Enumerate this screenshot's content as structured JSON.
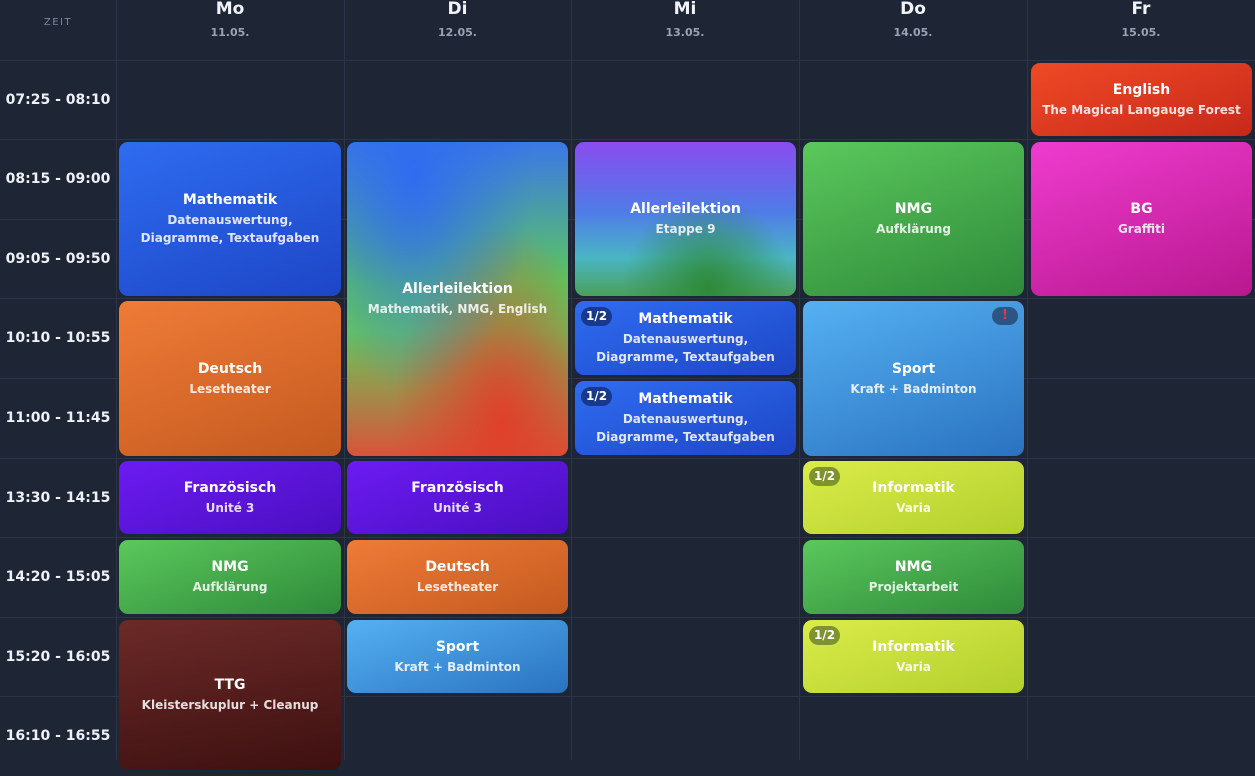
{
  "zeit_label": "ZEIT",
  "days": [
    {
      "name": "Mo",
      "date": "11.05."
    },
    {
      "name": "Di",
      "date": "12.05."
    },
    {
      "name": "Mi",
      "date": "13.05."
    },
    {
      "name": "Do",
      "date": "14.05."
    },
    {
      "name": "Fr",
      "date": "15.05."
    }
  ],
  "times": [
    "07:25 - 08:10",
    "08:15 - 09:00",
    "09:05 - 09:50",
    "10:10 - 10:55",
    "11:00 - 11:45",
    "13:30 - 14:15",
    "14:20 - 15:05",
    "15:20 - 16:05",
    "16:10 - 16:55"
  ],
  "lessons": {
    "mo_mathematik": {
      "subject": "Mathematik",
      "topic": "Datenauswertung, Diagramme, Textaufgaben"
    },
    "mo_deutsch": {
      "subject": "Deutsch",
      "topic": "Lesetheater"
    },
    "mo_franzoesisch": {
      "subject": "Französisch",
      "topic": "Unité 3"
    },
    "mo_nmg": {
      "subject": "NMG",
      "topic": "Aufklärung"
    },
    "mo_ttg": {
      "subject": "TTG",
      "topic": "Kleisterskuplur + Cleanup"
    },
    "di_allerlei": {
      "subject": "Allerleilektion",
      "topic": "Mathematik, NMG, English"
    },
    "di_franzoesisch": {
      "subject": "Französisch",
      "topic": "Unité 3"
    },
    "di_deutsch": {
      "subject": "Deutsch",
      "topic": "Lesetheater"
    },
    "di_sport": {
      "subject": "Sport",
      "topic": "Kraft + Badminton"
    },
    "mi_allerlei": {
      "subject": "Allerleilektion",
      "topic": "Etappe 9"
    },
    "mi_mathe1": {
      "subject": "Mathematik",
      "topic": "Datenauswertung, Diagramme, Textaufgaben",
      "badge": "1/2"
    },
    "mi_mathe2": {
      "subject": "Mathematik",
      "topic": "Datenauswertung, Diagramme, Textaufgaben",
      "badge": "1/2"
    },
    "do_nmg1": {
      "subject": "NMG",
      "topic": "Aufklärung"
    },
    "do_sport": {
      "subject": "Sport",
      "topic": "Kraft + Badminton",
      "alert": "!"
    },
    "do_info1": {
      "subject": "Informatik",
      "topic": "Varia",
      "badge": "1/2"
    },
    "do_nmg2": {
      "subject": "NMG",
      "topic": "Projektarbeit"
    },
    "do_info2": {
      "subject": "Informatik",
      "topic": "Varia",
      "badge": "1/2"
    },
    "fr_english": {
      "subject": "English",
      "topic": "The Magical Langauge Forest"
    },
    "fr_bg": {
      "subject": "BG",
      "topic": "Graffiti"
    }
  }
}
